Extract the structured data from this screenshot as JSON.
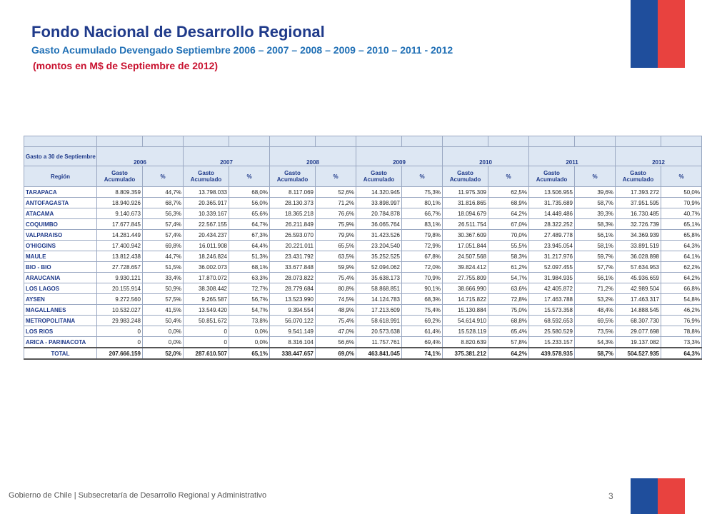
{
  "header": {
    "title": "Fondo Nacional de Desarrollo Regional",
    "subtitle": "Gasto Acumulado Devengado Septiembre  2006 – 2007 – 2008 – 2009 – 2010 – 2011 - 2012",
    "note": "(montos en M$ de Septiembre de 2012)"
  },
  "table": {
    "caption": "Gasto a 30 de Septiembre",
    "region_header": "Región",
    "years": [
      "2006",
      "2007",
      "2008",
      "2009",
      "2010",
      "2011",
      "2012"
    ],
    "gasto_label_1": "Gasto",
    "gasto_label_2": "Acumulado",
    "pct_label": "%",
    "rows": [
      {
        "region": "TARAPACA",
        "vals": [
          "8.809.359",
          "44,7%",
          "13.798.033",
          "68,0%",
          "8.117.069",
          "52,6%",
          "14.320.945",
          "75,3%",
          "11.975.309",
          "62,5%",
          "13.506.955",
          "39,6%",
          "17.393.272",
          "50,0%"
        ]
      },
      {
        "region": "ANTOFAGASTA",
        "vals": [
          "18.940.926",
          "68,7%",
          "20.365.917",
          "56,0%",
          "28.130.373",
          "71,2%",
          "33.898.997",
          "80,1%",
          "31.816.865",
          "68,9%",
          "31.735.689",
          "58,7%",
          "37.951.595",
          "70,9%"
        ]
      },
      {
        "region": "ATACAMA",
        "vals": [
          "9.140.673",
          "56,3%",
          "10.339.167",
          "65,6%",
          "18.365.218",
          "76,6%",
          "20.784.878",
          "66,7%",
          "18.094.679",
          "64,2%",
          "14.449.486",
          "39,3%",
          "16.730.485",
          "40,7%"
        ]
      },
      {
        "region": "COQUIMBO",
        "vals": [
          "17.677.845",
          "57,4%",
          "22.567.155",
          "64,7%",
          "26.211.849",
          "75,9%",
          "36.065.764",
          "83,1%",
          "26.511.754",
          "67,0%",
          "28.322.252",
          "58,3%",
          "32.726.739",
          "65,1%"
        ]
      },
      {
        "region": "VALPARAISO",
        "vals": [
          "14.281.449",
          "57,4%",
          "20.434.237",
          "67,3%",
          "26.593.070",
          "79,9%",
          "31.423.526",
          "79,8%",
          "30.367.609",
          "70,0%",
          "27.489.778",
          "56,1%",
          "34.369.939",
          "65,8%"
        ]
      },
      {
        "region": "O'HIGGINS",
        "vals": [
          "17.400.942",
          "69,8%",
          "16.011.908",
          "64,4%",
          "20.221.011",
          "65,5%",
          "23.204.540",
          "72,9%",
          "17.051.844",
          "55,5%",
          "23.945.054",
          "58,1%",
          "33.891.519",
          "64,3%"
        ]
      },
      {
        "region": "MAULE",
        "vals": [
          "13.812.438",
          "44,7%",
          "18.246.824",
          "51,3%",
          "23.431.792",
          "63,5%",
          "35.252.525",
          "67,8%",
          "24.507.568",
          "58,3%",
          "31.217.976",
          "59,7%",
          "36.028.898",
          "64,1%"
        ]
      },
      {
        "region": "BIO - BIO",
        "vals": [
          "27.728.657",
          "51,5%",
          "36.002.073",
          "68,1%",
          "33.677.848",
          "59,9%",
          "52.094.062",
          "72,0%",
          "39.824.412",
          "61,2%",
          "52.097.455",
          "57,7%",
          "57.634.953",
          "62,2%"
        ]
      },
      {
        "region": "ARAUCANIA",
        "vals": [
          "9.930.121",
          "33,4%",
          "17.870.072",
          "63,3%",
          "28.073.822",
          "75,4%",
          "35.638.173",
          "70,9%",
          "27.755.809",
          "54,7%",
          "31.984.935",
          "56,1%",
          "45.936.659",
          "64,2%"
        ]
      },
      {
        "region": "LOS LAGOS",
        "vals": [
          "20.155.914",
          "50,9%",
          "38.308.442",
          "72,7%",
          "28.779.684",
          "80,8%",
          "58.868.851",
          "90,1%",
          "38.666.990",
          "63,6%",
          "42.405.872",
          "71,2%",
          "42.989.504",
          "66,8%"
        ]
      },
      {
        "region": "AYSEN",
        "vals": [
          "9.272.560",
          "57,5%",
          "9.265.587",
          "56,7%",
          "13.523.990",
          "74,5%",
          "14.124.783",
          "68,3%",
          "14.715.822",
          "72,8%",
          "17.463.788",
          "53,2%",
          "17.463.317",
          "54,8%"
        ]
      },
      {
        "region": "MAGALLANES",
        "vals": [
          "10.532.027",
          "41,5%",
          "13.549.420",
          "54,7%",
          "9.394.554",
          "48,9%",
          "17.213.609",
          "75,4%",
          "15.130.884",
          "75,0%",
          "15.573.358",
          "48,4%",
          "14.888.545",
          "46,2%"
        ]
      },
      {
        "region": "METROPOLITANA",
        "vals": [
          "29.983.248",
          "50,4%",
          "50.851.672",
          "73,8%",
          "56.070.122",
          "75,4%",
          "58.618.991",
          "69,2%",
          "54.614.910",
          "68,8%",
          "68.592.653",
          "69,5%",
          "68.307.730",
          "76,9%"
        ]
      },
      {
        "region": "LOS RIOS",
        "vals": [
          "0",
          "0,0%",
          "0",
          "0,0%",
          "9.541.149",
          "47,0%",
          "20.573.638",
          "61,4%",
          "15.528.119",
          "65,4%",
          "25.580.529",
          "73,5%",
          "29.077.698",
          "78,8%"
        ]
      },
      {
        "region": "ARICA - PARINACOTA",
        "vals": [
          "0",
          "0,0%",
          "0",
          "0,0%",
          "8.316.104",
          "56,6%",
          "11.757.761",
          "69,4%",
          "8.820.639",
          "57,8%",
          "15.233.157",
          "54,3%",
          "19.137.082",
          "73,3%"
        ]
      }
    ],
    "total": {
      "region": "TOTAL",
      "vals": [
        "207.666.159",
        "52,0%",
        "287.610.507",
        "65,1%",
        "338.447.657",
        "69,0%",
        "463.841.045",
        "74,1%",
        "375.381.212",
        "64,2%",
        "439.578.935",
        "58,7%",
        "504.527.935",
        "64,3%"
      ]
    }
  },
  "footer": {
    "text": "Gobierno de Chile | Subsecretaría de Desarrollo Regional y Administrativo",
    "page": "3"
  }
}
